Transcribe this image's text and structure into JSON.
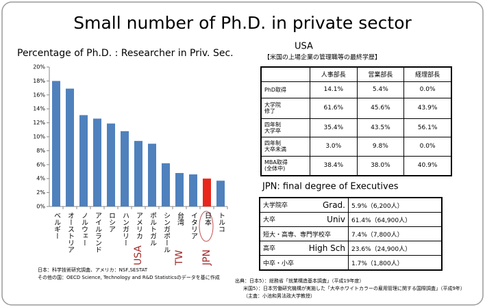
{
  "title": "Small number of Ph.D. in private sector",
  "chart_data": {
    "type": "bar",
    "title": "Percentage of Ph.D. : Researcher in Priv. Sec.",
    "categories": [
      "ベルギー",
      "オーストリア",
      "ノルウェー",
      "アイルランド",
      "ロシア",
      "ハンガリー",
      "アメリカ",
      "ポルトガル",
      "シンガポール",
      "台湾",
      "イタリア",
      "日本",
      "トルコ"
    ],
    "values": [
      18.0,
      16.9,
      13.1,
      12.6,
      11.9,
      10.8,
      9.4,
      9.0,
      6.2,
      4.8,
      4.6,
      4.0,
      3.7
    ],
    "colors": [
      "#4f81bd",
      "#4f81bd",
      "#4f81bd",
      "#4f81bd",
      "#4f81bd",
      "#4f81bd",
      "#4f81bd",
      "#4f81bd",
      "#4f81bd",
      "#4f81bd",
      "#4f81bd",
      "#e8261c",
      "#4f81bd"
    ],
    "ylim": [
      0,
      20
    ],
    "yticks": [
      {
        "value": 0,
        "label": "0%"
      },
      {
        "value": 2,
        "label": "2%"
      },
      {
        "value": 4,
        "label": "4%"
      },
      {
        "value": 6,
        "label": "6%"
      },
      {
        "value": 8,
        "label": "8%"
      },
      {
        "value": 10,
        "label": "10%"
      },
      {
        "value": 12,
        "label": "12%"
      },
      {
        "value": 14,
        "label": "14%"
      },
      {
        "value": 16,
        "label": "16%"
      },
      {
        "value": 18,
        "label": "18%"
      },
      {
        "value": 20,
        "label": "20%"
      }
    ],
    "annotations": [
      "USA",
      "TW",
      "JPN"
    ],
    "source_notes": [
      "日本：科学技術研究調査、アメリカ：NSF,SESTAT",
      "その他の国：OECD Science, Technology and R&D Statisticsのデータを基に作成"
    ]
  },
  "usa_table": {
    "title": "USA",
    "subtitle": "【米国の上場企業の管理職等の最終学歴】",
    "columns": [
      "人事部長",
      "営業部長",
      "経理部長"
    ],
    "rows": [
      {
        "label": [
          "PhD取得"
        ],
        "values": [
          "14.1%",
          "5.4%",
          "0.0%"
        ]
      },
      {
        "label": [
          "大学院",
          "修了"
        ],
        "values": [
          "61.6%",
          "45.6%",
          "43.9%"
        ]
      },
      {
        "label": [
          "四年制",
          "大学卒"
        ],
        "values": [
          "35.4%",
          "43.5%",
          "56.1%"
        ]
      },
      {
        "label": [
          "四年制",
          "大卒未満"
        ],
        "values": [
          "3.0%",
          "9.8%",
          "0.0%"
        ]
      },
      {
        "label": [
          "MBA取得",
          "(全体中)"
        ],
        "values": [
          "38.4%",
          "38.0%",
          "40.9%"
        ]
      }
    ]
  },
  "jpn_table": {
    "title": "JPN: final degree of Executives",
    "rows": [
      {
        "label": "大学院卒",
        "label_en": "Grad.",
        "value": "5.9%（6,200人）"
      },
      {
        "label": "大卒",
        "label_en": "Univ",
        "value": "61.4%（64,900人）"
      },
      {
        "label": "短大・高専、専門学校卒",
        "value": "7.4%（7,800人）"
      },
      {
        "label": "高卒",
        "label_en": "High Sch",
        "value": "23.6%（24,900人）"
      },
      {
        "label": "中卒・小卒",
        "value": "1.7%（1,800人）"
      }
    ]
  },
  "sources": [
    "出典：日本5）：総務省「就業構造基本調査」（平成19年度）",
    "米国5）：日本労働研究機構が実施した「大卒ホワイトカラーの雇用管理に関する国際調査」（平成9年）",
    "（主査：小池和男法政大学教授）"
  ]
}
